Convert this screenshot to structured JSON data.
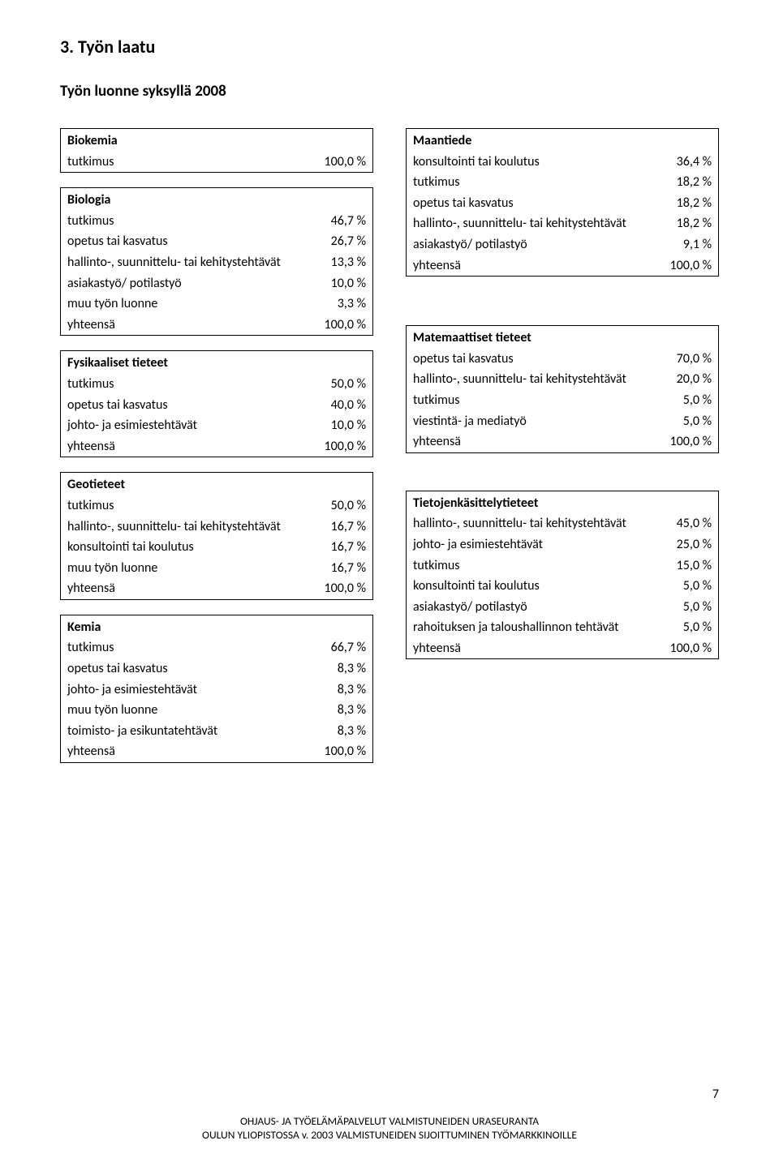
{
  "section_title": "3. Työn laatu",
  "subtitle": "Työn luonne syksyllä 2008",
  "page_number": "7",
  "footer_line1": "OHJAUS- JA TYÖELÄMÄPALVELUT        VALMISTUNEIDEN URASEURANTA",
  "footer_line2": "OULUN  YLIOPISTOSSA v.  2003 VALMISTUNEIDEN  SIJOITTUMINEN TYÖMARKKINOILLE",
  "tables": {
    "biokemia": {
      "title": "Biokemia",
      "rows": [
        {
          "label": "tutkimus",
          "value": "100,0 %"
        }
      ]
    },
    "biologia": {
      "title": "Biologia",
      "rows": [
        {
          "label": "tutkimus",
          "value": "46,7 %"
        },
        {
          "label": "opetus tai kasvatus",
          "value": "26,7 %"
        },
        {
          "label": "hallinto-, suunnittelu- tai kehitystehtävät",
          "value": "13,3 %"
        },
        {
          "label": "asiakastyö/ potilastyö",
          "value": "10,0 %"
        },
        {
          "label": "muu työn luonne",
          "value": "3,3 %"
        },
        {
          "label": "yhteensä",
          "value": "100,0 %"
        }
      ]
    },
    "fysikaaliset": {
      "title": "Fysikaaliset tieteet",
      "rows": [
        {
          "label": "tutkimus",
          "value": "50,0 %"
        },
        {
          "label": "opetus tai kasvatus",
          "value": "40,0 %"
        },
        {
          "label": "johto- ja esimiestehtävät",
          "value": "10,0 %"
        },
        {
          "label": "yhteensä",
          "value": "100,0 %"
        }
      ]
    },
    "geotieteet": {
      "title": "Geotieteet",
      "rows": [
        {
          "label": "tutkimus",
          "value": "50,0 %"
        },
        {
          "label": "hallinto-, suunnittelu- tai kehitystehtävät",
          "value": "16,7 %"
        },
        {
          "label": "konsultointi tai koulutus",
          "value": "16,7 %"
        },
        {
          "label": "muu työn luonne",
          "value": "16,7 %"
        },
        {
          "label": "yhteensä",
          "value": "100,0 %"
        }
      ]
    },
    "kemia": {
      "title": "Kemia",
      "rows": [
        {
          "label": "tutkimus",
          "value": "66,7 %"
        },
        {
          "label": "opetus tai kasvatus",
          "value": "8,3 %"
        },
        {
          "label": "johto- ja esimiestehtävät",
          "value": "8,3 %"
        },
        {
          "label": "muu työn luonne",
          "value": "8,3 %"
        },
        {
          "label": "toimisto- ja esikuntatehtävät",
          "value": "8,3 %"
        },
        {
          "label": "yhteensä",
          "value": "100,0 %"
        }
      ]
    },
    "maantiede": {
      "title": "Maantiede",
      "rows": [
        {
          "label": "konsultointi tai koulutus",
          "value": "36,4 %"
        },
        {
          "label": "tutkimus",
          "value": "18,2 %"
        },
        {
          "label": "opetus tai kasvatus",
          "value": "18,2 %"
        },
        {
          "label": "hallinto-, suunnittelu- tai kehitystehtävät",
          "value": "18,2 %"
        },
        {
          "label": "asiakastyö/ potilastyö",
          "value": "9,1 %"
        },
        {
          "label": "yhteensä",
          "value": "100,0 %"
        }
      ]
    },
    "matemaattiset": {
      "title": "Matemaattiset tieteet",
      "rows": [
        {
          "label": "opetus tai kasvatus",
          "value": "70,0 %"
        },
        {
          "label": "hallinto-, suunnittelu- tai kehitystehtävät",
          "value": "20,0 %"
        },
        {
          "label": "tutkimus",
          "value": "5,0 %"
        },
        {
          "label": "viestintä- ja mediatyö",
          "value": "5,0 %"
        },
        {
          "label": "yhteensä",
          "value": "100,0 %"
        }
      ]
    },
    "tietojenkasittely": {
      "title": "Tietojenkäsittelytieteet",
      "rows": [
        {
          "label": "hallinto-, suunnittelu- tai kehitystehtävät",
          "value": "45,0 %"
        },
        {
          "label": "johto- ja esimiestehtävät",
          "value": "25,0 %"
        },
        {
          "label": "tutkimus",
          "value": "15,0 %"
        },
        {
          "label": "konsultointi tai koulutus",
          "value": "5,0 %"
        },
        {
          "label": "asiakastyö/ potilastyö",
          "value": "5,0 %"
        },
        {
          "label": "rahoituksen ja taloushallinnon tehtävät",
          "value": "5,0 %"
        },
        {
          "label": "yhteensä",
          "value": "100,0 %"
        }
      ]
    }
  }
}
